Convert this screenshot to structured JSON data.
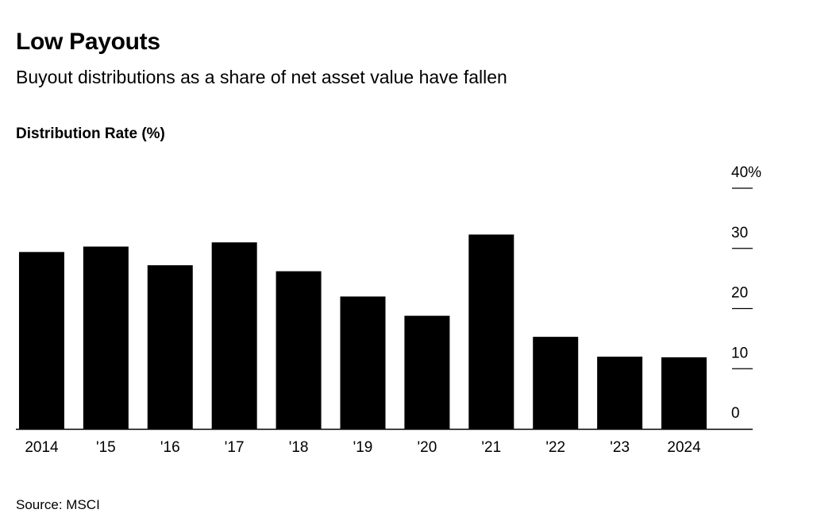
{
  "chart_data": {
    "type": "bar",
    "title": "Low Payouts",
    "subtitle": "Buyout distributions as a share of net asset value have fallen",
    "ylabel": "Distribution Rate (%)",
    "xlabel": "",
    "categories": [
      "2014",
      "'15",
      "'16",
      "'17",
      "'18",
      "'19",
      "'20",
      "'21",
      "'22",
      "'23",
      "2024"
    ],
    "values": [
      29.4,
      30.3,
      27.2,
      31.0,
      26.2,
      22.0,
      18.8,
      32.3,
      15.3,
      12.0,
      11.9
    ],
    "ylim": [
      0,
      40
    ],
    "yticks": [
      0,
      10,
      20,
      30,
      40
    ],
    "ytick_labels": [
      "0",
      "10",
      "20",
      "30",
      "40%"
    ],
    "axis_side": "right",
    "grid": false,
    "bar_color": "#000000",
    "source": "Source: MSCI"
  }
}
